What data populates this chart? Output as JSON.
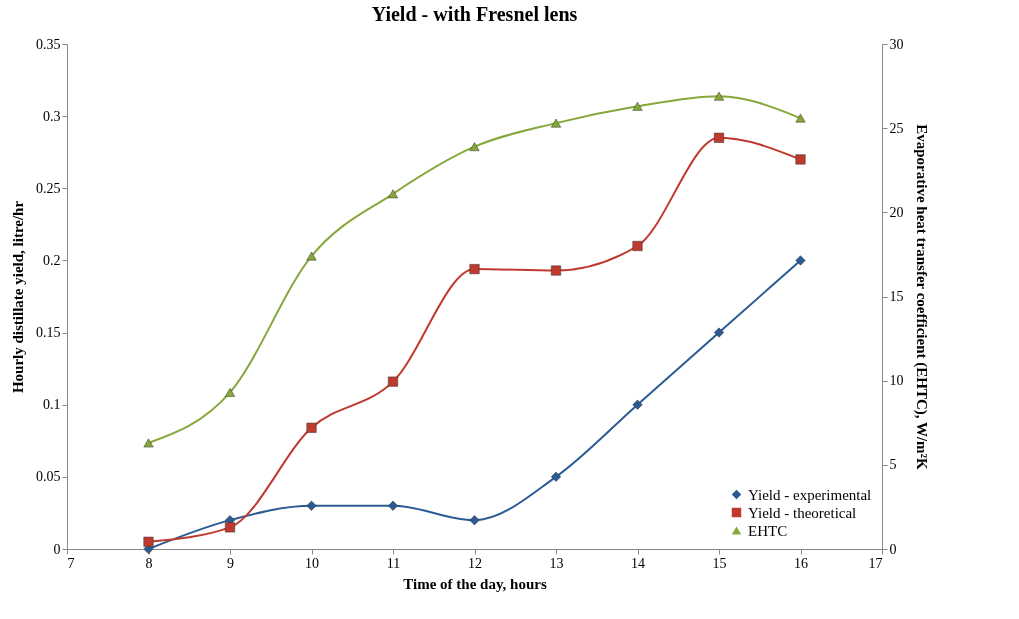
{
  "chart_data": {
    "type": "line",
    "title": "Yield - with Fresnel lens",
    "xlabel": "Time of the day, hours",
    "ylabel": "Hourly distillate yield, litre/hr",
    "y2label": "Evaporative heat transfer coefficient (EHTC), W/m²K",
    "x": [
      8,
      9,
      10,
      11,
      12,
      13,
      14,
      15,
      16
    ],
    "series": [
      {
        "name": "Yield - experimental",
        "color": "#2a5b94",
        "marker": "diamond",
        "values": [
          0,
          0.02,
          0.03,
          0.03,
          0.02,
          0.05,
          0.1,
          0.15,
          0.2
        ]
      },
      {
        "name": "Yield - theoretical",
        "color": "#c0392f",
        "marker": "square",
        "values": [
          0.005,
          0.015,
          0.084,
          0.116,
          0.194,
          0.193,
          0.21,
          0.285,
          0.27
        ]
      },
      {
        "name": "EHTC",
        "color": "#86a83a",
        "marker": "triangle",
        "axis": "y2",
        "values": [
          6.3,
          9.3,
          17.4,
          21.1,
          23.9,
          25.3,
          26.3,
          26.9,
          25.6
        ]
      }
    ],
    "xlim": [
      7,
      17
    ],
    "xticks": [
      7,
      8,
      9,
      10,
      11,
      12,
      13,
      14,
      15,
      16,
      17
    ],
    "ylim": [
      0,
      0.35
    ],
    "yticks": [
      0,
      0.05,
      0.1,
      0.15,
      0.2,
      0.25,
      0.3,
      0.35
    ],
    "y2lim": [
      0,
      30
    ],
    "y2ticks": [
      0,
      5,
      10,
      15,
      20,
      25,
      30
    ],
    "grid": false,
    "legend": "bottom right"
  }
}
